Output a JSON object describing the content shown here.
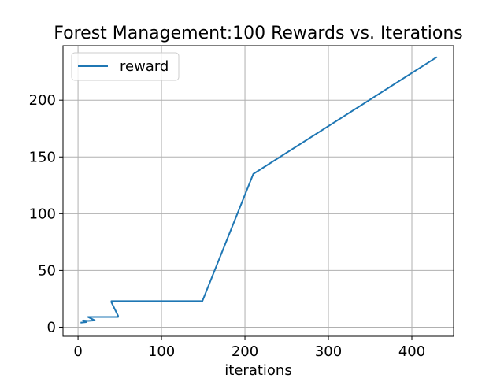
{
  "chart_data": {
    "type": "line",
    "title": "Forest Management:100 Rewards vs. Iterations",
    "xlabel": "iterations",
    "ylabel": "",
    "xlim": [
      -18,
      450
    ],
    "ylim": [
      -8,
      248
    ],
    "xticks": [
      0,
      100,
      200,
      300,
      400
    ],
    "yticks": [
      0,
      50,
      100,
      150,
      200
    ],
    "grid": true,
    "legend_position": "top-left",
    "series": [
      {
        "name": "reward",
        "color": "#1f77b4",
        "x": [
          3,
          10,
          6,
          12,
          20,
          12,
          25,
          48,
          48,
          40,
          40,
          149,
          210,
          430
        ],
        "y": [
          4,
          4.5,
          6,
          5.5,
          6,
          9,
          9,
          9,
          10,
          22,
          23,
          23,
          135,
          238
        ]
      }
    ]
  }
}
